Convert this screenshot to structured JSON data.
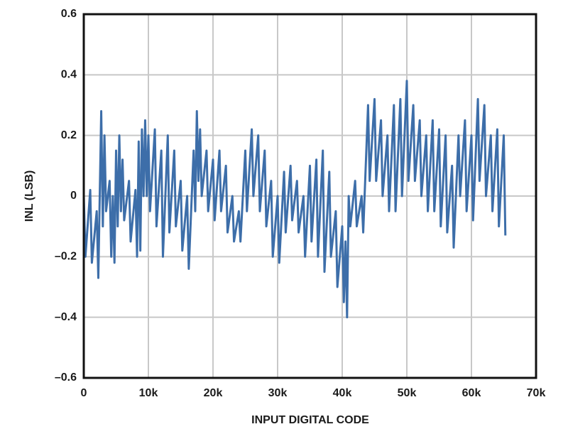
{
  "chart_data": {
    "type": "line",
    "xlabel": "INPUT DIGITAL CODE",
    "ylabel": "INL (LSB)",
    "xlim": [
      0,
      70000
    ],
    "ylim": [
      -0.6,
      0.6
    ],
    "xticks": [
      0,
      {
        "value": 10000,
        "label": "10k"
      },
      {
        "value": 20000,
        "label": "20k"
      },
      {
        "value": 30000,
        "label": "30k"
      },
      {
        "value": 40000,
        "label": "40k"
      },
      {
        "value": 50000,
        "label": "50k"
      },
      {
        "value": 60000,
        "label": "60k"
      },
      {
        "value": 70000,
        "label": "70k"
      }
    ],
    "yticks": [
      {
        "value": -0.6,
        "label": "–0.6"
      },
      {
        "value": -0.4,
        "label": "–0.4"
      },
      {
        "value": -0.2,
        "label": "–0.2"
      },
      0,
      0.2,
      0.4,
      0.6
    ],
    "grid": true,
    "series": [
      {
        "color": "#3d6ea9",
        "x": [
          0,
          250,
          1000,
          1250,
          2000,
          2250,
          2700,
          2950,
          3200,
          3450,
          4000,
          4250,
          4500,
          4750,
          5000,
          5250,
          5500,
          5750,
          6000,
          6250,
          7000,
          7250,
          8000,
          8250,
          8500,
          8750,
          9000,
          9250,
          9500,
          9750,
          10000,
          10250,
          11000,
          11250,
          12000,
          12250,
          13000,
          13250,
          14000,
          14250,
          15000,
          15250,
          16000,
          16250,
          17000,
          17250,
          17500,
          17750,
          18000,
          18250,
          19000,
          19250,
          20000,
          20250,
          21000,
          21250,
          22000,
          22250,
          23000,
          23250,
          24000,
          24250,
          25000,
          25250,
          26000,
          26250,
          27000,
          27250,
          28000,
          28250,
          29000,
          29250,
          30000,
          30250,
          31000,
          31250,
          32000,
          32250,
          33000,
          33250,
          34000,
          34250,
          35000,
          35250,
          36000,
          36250,
          37000,
          37250,
          38000,
          38250,
          39000,
          39250,
          40000,
          40250,
          40500,
          40750,
          41000,
          41250,
          42000,
          42250,
          43000,
          43250,
          44000,
          44250,
          45000,
          45250,
          46000,
          46250,
          47000,
          47250,
          48000,
          48250,
          49000,
          49250,
          50000,
          50250,
          51000,
          51250,
          52000,
          52250,
          53000,
          53250,
          54000,
          54250,
          55000,
          55250,
          56000,
          56250,
          57000,
          57250,
          58000,
          58250,
          59000,
          59250,
          60000,
          60250,
          61000,
          61250,
          62000,
          62250,
          63000,
          63250,
          64000,
          64250,
          65000,
          65250
        ],
        "values": [
          0,
          -0.2,
          0.02,
          -0.22,
          -0.05,
          -0.27,
          0.28,
          -0.1,
          0.2,
          -0.05,
          0.05,
          -0.2,
          0,
          -0.22,
          0.15,
          -0.1,
          0.2,
          -0.05,
          0.12,
          -0.08,
          0.05,
          -0.15,
          0.02,
          -0.2,
          0.18,
          -0.18,
          0.22,
          0,
          0.25,
          0,
          0.2,
          -0.05,
          0.22,
          -0.1,
          0.15,
          -0.2,
          0.2,
          -0.12,
          0.15,
          -0.1,
          0.05,
          -0.18,
          0,
          -0.24,
          0.15,
          -0.05,
          0.28,
          0.05,
          0.22,
          0,
          0.15,
          -0.05,
          0.12,
          -0.08,
          0.15,
          -0.05,
          0.1,
          -0.12,
          0,
          -0.15,
          -0.05,
          -0.15,
          0.15,
          -0.05,
          0.22,
          0,
          0.2,
          -0.05,
          0.15,
          -0.1,
          0.05,
          -0.2,
          0,
          -0.22,
          0.08,
          -0.12,
          0.1,
          -0.08,
          0.05,
          -0.12,
          0,
          -0.2,
          0.1,
          -0.15,
          0.12,
          -0.2,
          0.15,
          -0.25,
          0.08,
          -0.2,
          -0.05,
          -0.3,
          -0.1,
          -0.35,
          -0.15,
          -0.4,
          0,
          -0.1,
          0.05,
          -0.1,
          0,
          -0.12,
          0.3,
          0.05,
          0.32,
          0.05,
          0.25,
          0,
          0.2,
          -0.05,
          0.3,
          -0.05,
          0.32,
          0,
          0.38,
          0.05,
          0.3,
          0.05,
          0.25,
          0,
          0.2,
          -0.05,
          0.25,
          -0.05,
          0.22,
          -0.1,
          0.2,
          -0.12,
          0.1,
          -0.17,
          0.2,
          0,
          0.25,
          -0.05,
          0.2,
          -0.08,
          0.32,
          0.05,
          0.3,
          0,
          0.2,
          -0.05,
          0.22,
          -0.1,
          0.2,
          -0.13
        ]
      }
    ]
  }
}
